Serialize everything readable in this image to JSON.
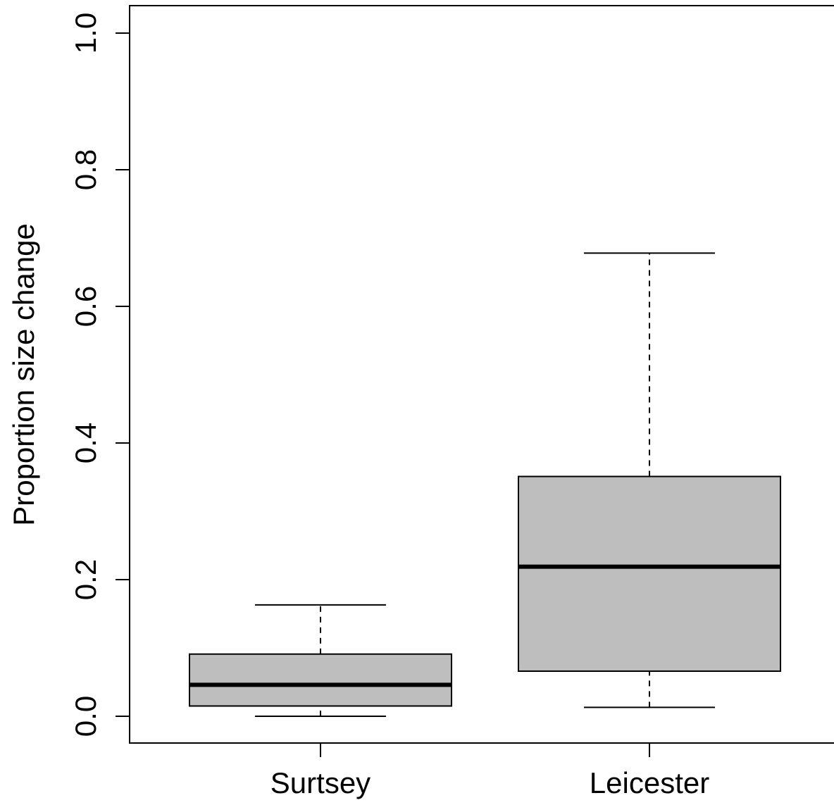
{
  "chart_data": {
    "type": "boxplot",
    "title": "",
    "xlabel": "",
    "ylabel": "Proportion size change",
    "ylim": [
      0,
      1
    ],
    "yticks": [
      "0.0",
      "0.2",
      "0.4",
      "0.6",
      "0.8",
      "1.0"
    ],
    "grid": false,
    "categories": [
      "Surtsey",
      "Leicester"
    ],
    "boxes": [
      {
        "category": "Surtsey",
        "whisker_low": 0.0,
        "q1": 0.015,
        "median": 0.046,
        "q3": 0.091,
        "whisker_high": 0.163
      },
      {
        "category": "Leicester",
        "whisker_low": 0.013,
        "q1": 0.066,
        "median": 0.219,
        "q3": 0.351,
        "whisker_high": 0.678
      }
    ],
    "colors": {
      "box_fill": "#bebebe",
      "line": "#000000",
      "background": "#ffffff"
    }
  }
}
